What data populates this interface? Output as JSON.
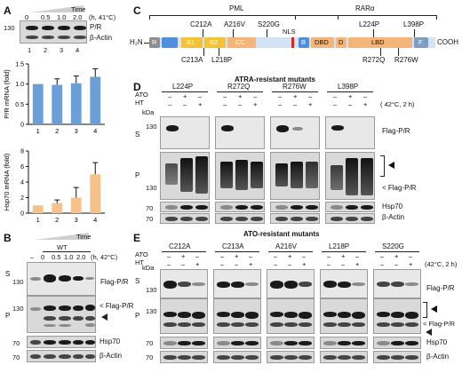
{
  "panels": {
    "A": {
      "letter": "A",
      "time_label": "Time",
      "time_values": [
        "0",
        "0.5",
        "1.0",
        "2.0"
      ],
      "time_unit": "(h, 41°C)",
      "mw_130": "130",
      "blot_labels": [
        "P/R",
        "β-Actin"
      ],
      "lanes": [
        "1",
        "2",
        "3",
        "4"
      ],
      "chart_pr_ylabel": "P/R mRNA (fold)",
      "chart_hsp_ylabel": "Hsp70 mRNA (fold)"
    },
    "B": {
      "letter": "B",
      "time_label": "Time",
      "wt_label": "WT",
      "time_values": [
        "0",
        "0.5",
        "1.0",
        "2.0"
      ],
      "dash": "–",
      "time_unit": "(h, 42°C)",
      "S": "S",
      "P": "P",
      "mw": [
        "130",
        "130",
        "70",
        "70"
      ],
      "flag_pr": "Flag-P/R",
      "flag_pr_arrow": "< Flag-P/R",
      "hsp70": "Hsp70",
      "actin": "β-Actin"
    },
    "C": {
      "letter": "C",
      "pml": "PML",
      "rara": "RARα",
      "mut_top": [
        "C212A",
        "A216V",
        "S220G",
        "L224P",
        "L398P"
      ],
      "mut_bottom": [
        "C213A",
        "L218P",
        "R272Q",
        "R276W"
      ],
      "nterm": "H₂N",
      "cterm": "COOH",
      "domains": [
        "R",
        "B1",
        "B2",
        "CC",
        "B",
        "DBD",
        "D",
        "LBD",
        "F"
      ],
      "nls": "NLS"
    },
    "D": {
      "letter": "D",
      "title": "ATRA-resistant mutants",
      "mutants": [
        "L224P",
        "R272Q",
        "R276W",
        "L398P"
      ],
      "ato": "ATO",
      "ht": "HT",
      "signs_ato": [
        "–",
        "+",
        "–"
      ],
      "signs_ht": [
        "–",
        "–",
        "+"
      ],
      "cond": "( 42°C, 2 h)",
      "kda": "kDa",
      "S": "S",
      "P": "P",
      "mw": [
        "130",
        "130",
        "70",
        "70"
      ],
      "flag_pr": "Flag-P/R",
      "flag_pr_arrow": "< Flag-P/R",
      "hsp70": "Hsp70",
      "actin": "β-Actin"
    },
    "E": {
      "letter": "E",
      "title": "ATO-resistant mutants",
      "mutants": [
        "C212A",
        "C213A",
        "A216V",
        "L218P",
        "S220G"
      ],
      "ato": "ATO",
      "ht": "HT",
      "signs_ato": [
        "–",
        "+",
        "–"
      ],
      "signs_ht": [
        "–",
        "–",
        "+"
      ],
      "cond": "(42°C, 2 h)",
      "kda": "kDa",
      "S": "S",
      "P": "P",
      "mw": [
        "130",
        "130",
        "70",
        "70"
      ],
      "flag_pr": "Flag-P/R",
      "flag_pr_arrow": "< Flag-P/R",
      "hsp70": "Hsp70",
      "actin": "β-Actin"
    }
  },
  "colors": {
    "blue_bar": "#6a9fd8",
    "orange_bar": "#f5c38a",
    "R": "#8e8e8e",
    "B1": "#f3c23a",
    "B2": "#f3c23a",
    "CC": "#f3b57a",
    "B": "#4f8fdc",
    "DBD": "#f3b57a",
    "D": "#f3b57a",
    "LBD": "#f3b57a",
    "F": "#7d9ec0"
  },
  "chart_data": [
    {
      "type": "bar",
      "categories": [
        "1",
        "2",
        "3",
        "4"
      ],
      "values": [
        1.0,
        0.98,
        1.02,
        1.18
      ],
      "errors": [
        0.0,
        0.15,
        0.18,
        0.2
      ],
      "ylim": [
        0,
        1.5
      ],
      "yticks": [
        0,
        0.5,
        1.0,
        1.5
      ],
      "ylabel": "P/R mRNA (fold)"
    },
    {
      "type": "bar",
      "categories": [
        "1",
        "2",
        "3",
        "4"
      ],
      "values": [
        1.0,
        1.3,
        2.0,
        5.0
      ],
      "errors": [
        0.0,
        0.4,
        1.3,
        1.5
      ],
      "ylim": [
        0,
        8
      ],
      "yticks": [
        0,
        2,
        4,
        6,
        8
      ],
      "ylabel": "Hsp70 mRNA (fold)"
    }
  ]
}
